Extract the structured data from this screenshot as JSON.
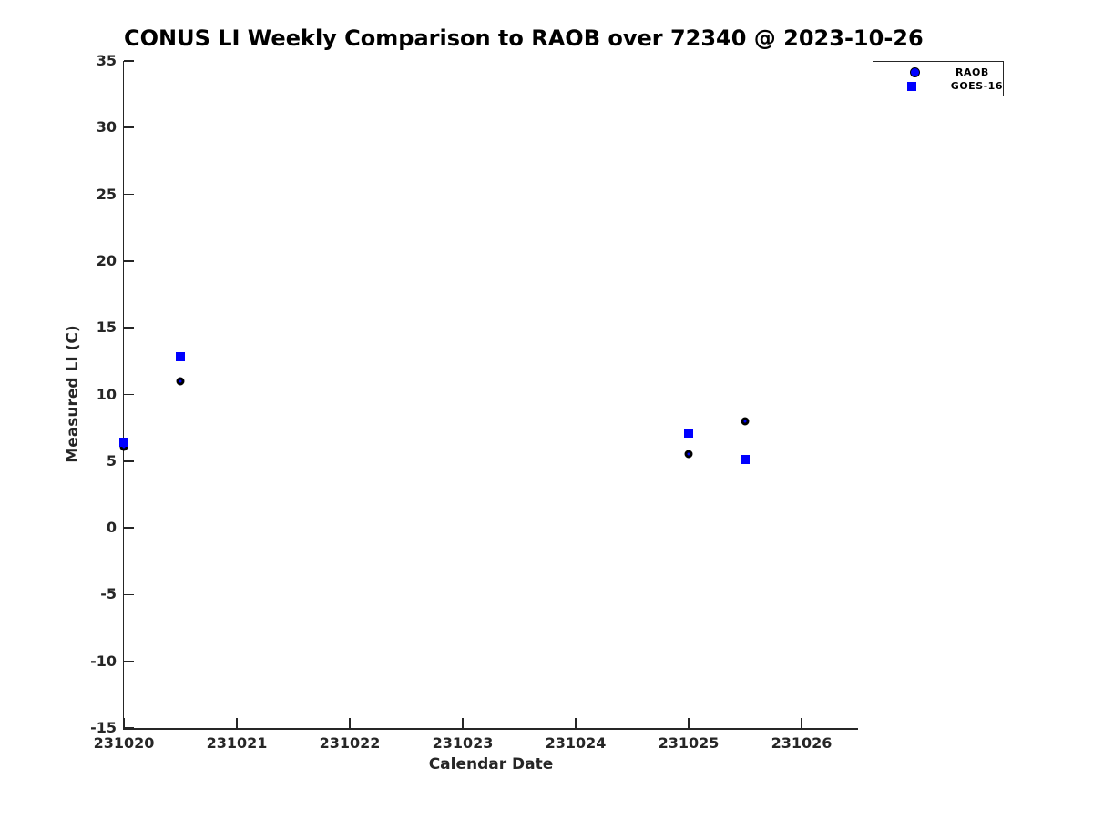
{
  "chart_data": {
    "type": "scatter",
    "title": "CONUS LI Weekly Comparison to RAOB over 72340 @ 2023-10-26",
    "xlabel": "Calendar Date",
    "ylabel": "Measured LI (C)",
    "xlim": [
      231020,
      231026.5
    ],
    "ylim": [
      -15,
      35
    ],
    "xticks": [
      231020,
      231021,
      231022,
      231023,
      231024,
      231025,
      231026
    ],
    "yticks": [
      -15,
      -10,
      -5,
      0,
      5,
      10,
      15,
      20,
      25,
      30,
      35
    ],
    "grid": false,
    "legend_position": "outside-top-right",
    "axis_color": "#262626",
    "background_color": "#ffffff",
    "series": [
      {
        "name": "RAOB",
        "marker": "circle",
        "fill": "#0000ff",
        "edge": "#000000",
        "x": [
          231020.0,
          231020.5,
          231025.0,
          231025.5
        ],
        "y": [
          6.1,
          11.0,
          5.5,
          8.0
        ]
      },
      {
        "name": "GOES-16",
        "marker": "square",
        "fill": "#0000ff",
        "edge": "#0000ff",
        "x": [
          231020.0,
          231020.5,
          231025.0,
          231025.5
        ],
        "y": [
          6.4,
          12.8,
          7.1,
          5.1
        ]
      }
    ]
  }
}
